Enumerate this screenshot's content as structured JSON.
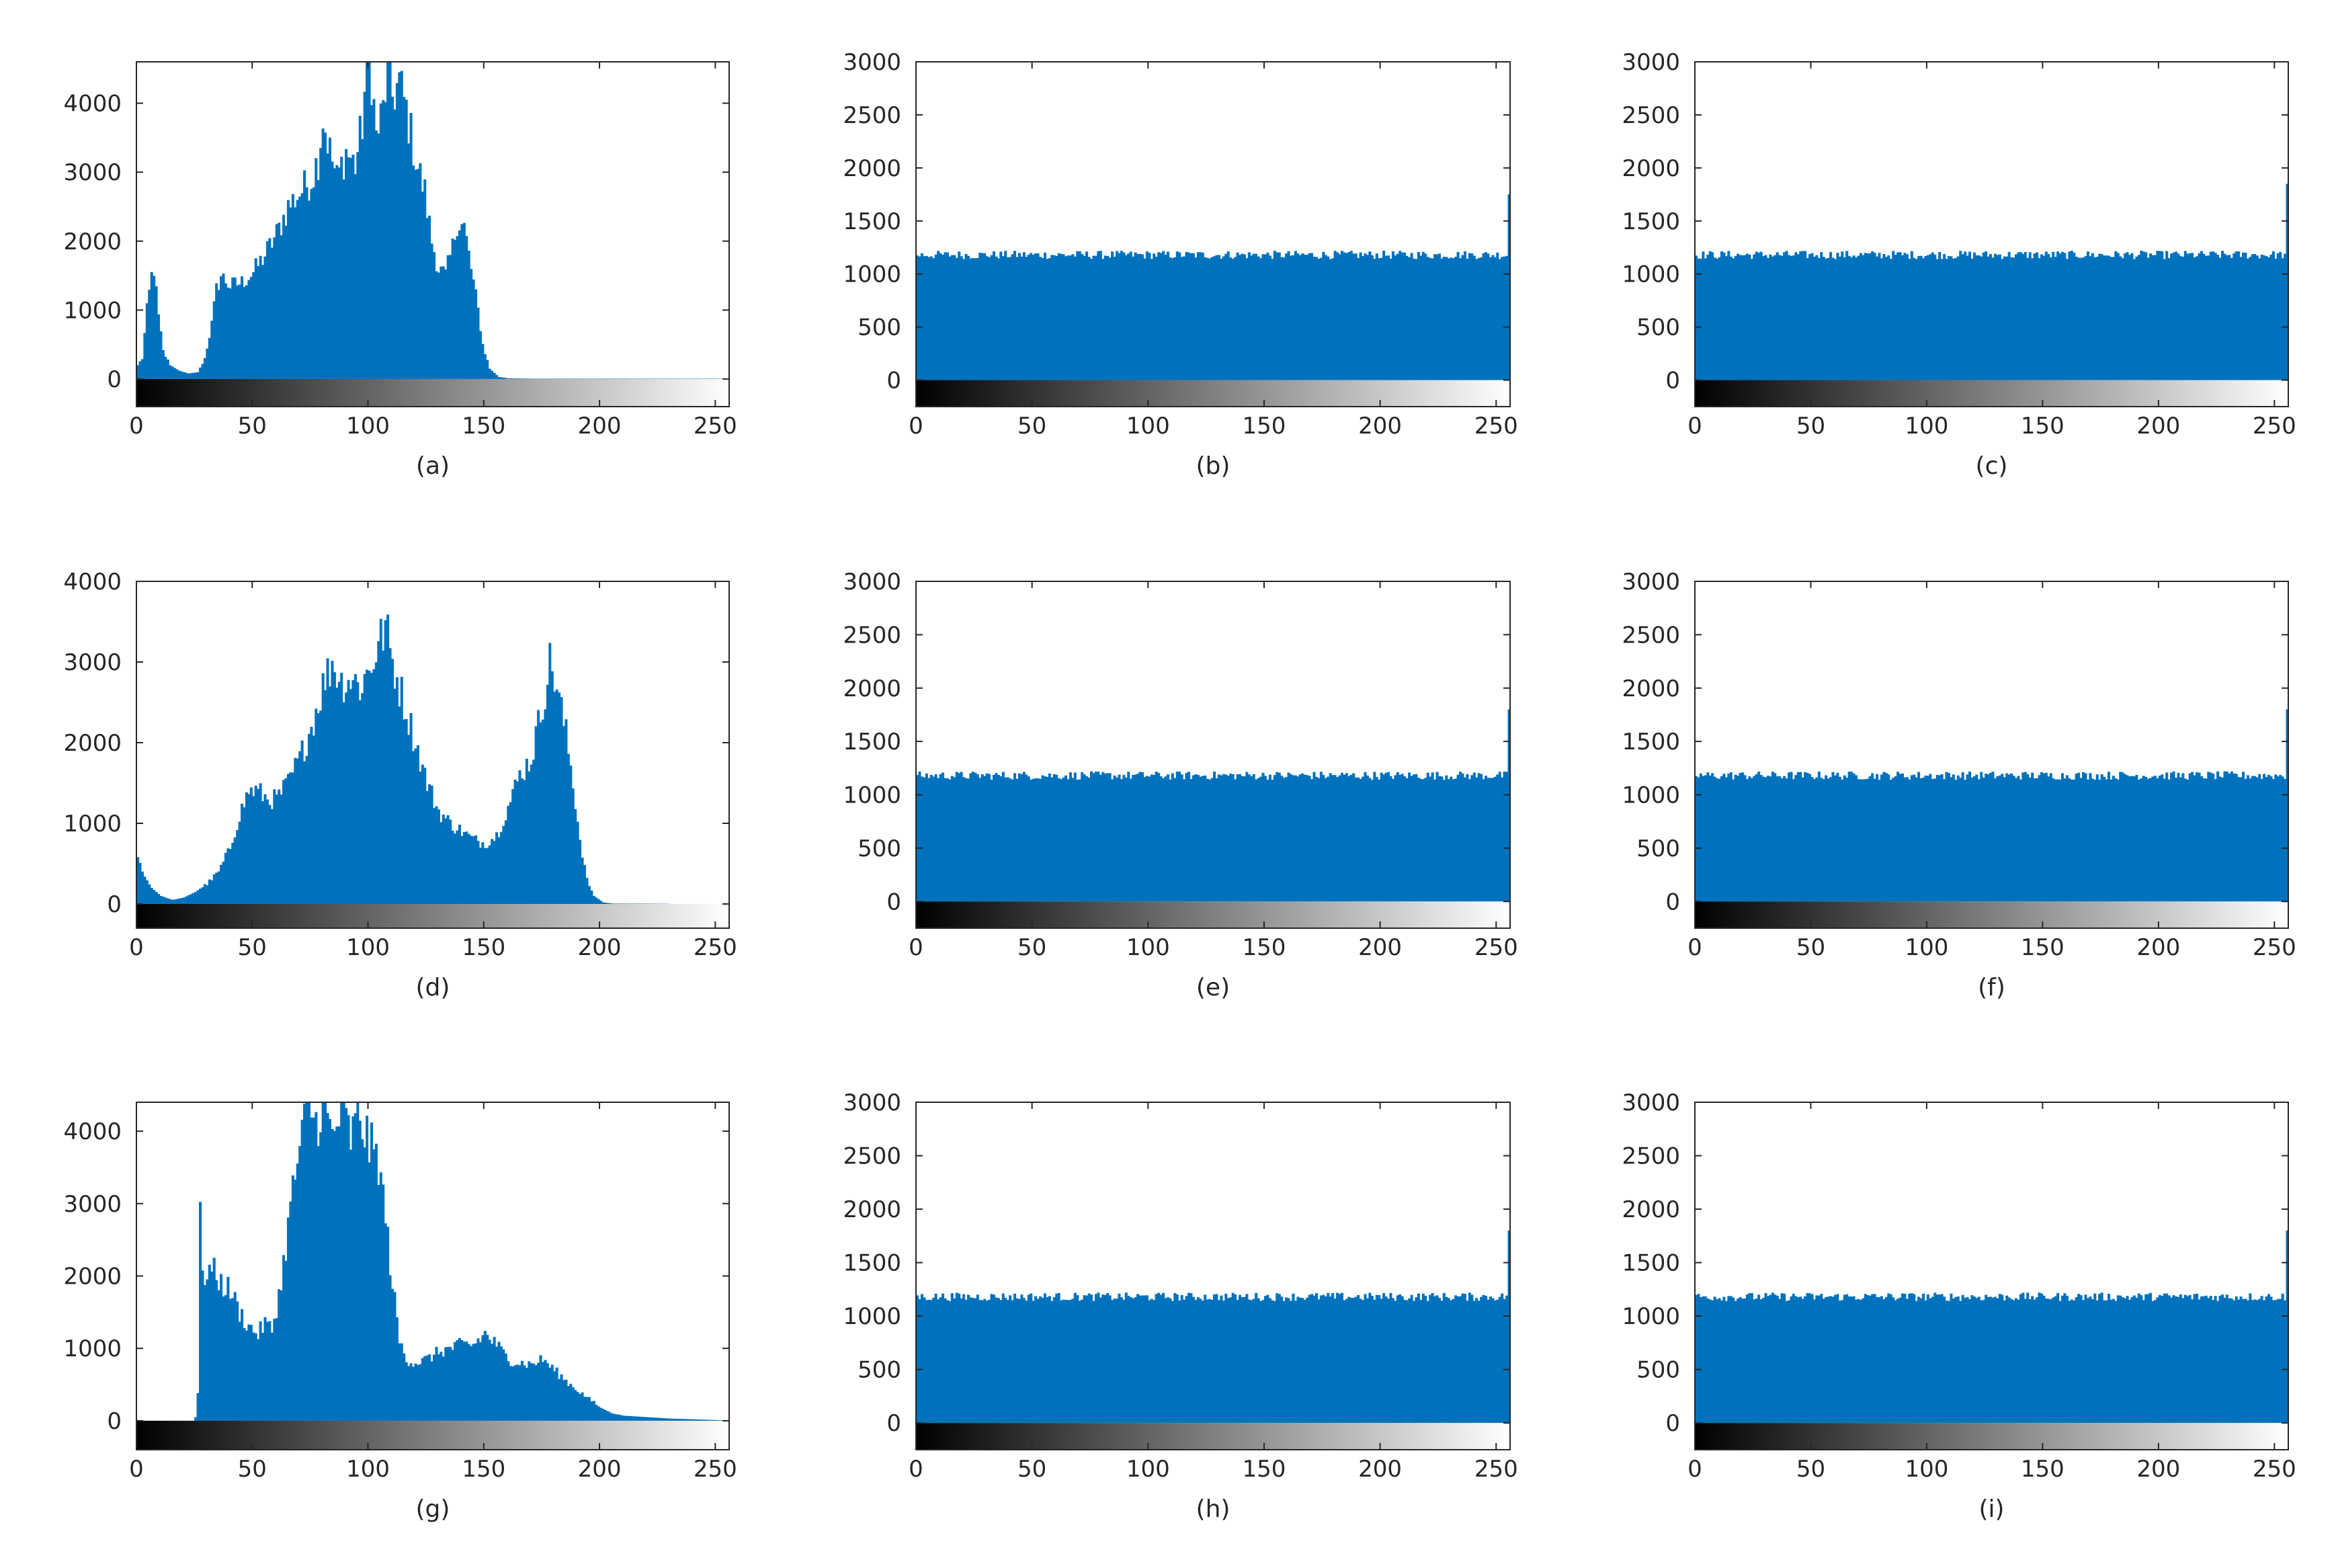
{
  "figure": {
    "bar_color": "#0072BD",
    "axis_color": "#262626"
  },
  "chart_data": [
    {
      "type": "bar",
      "subplot_label": "(a)",
      "xlim": [
        0,
        256
      ],
      "ylim": [
        -400,
        4600
      ],
      "yticks": [
        0,
        1000,
        2000,
        3000,
        4000
      ],
      "xticks": [
        0,
        50,
        100,
        150,
        200,
        250
      ],
      "colorbar": "grayscale 0-255",
      "x_bins": "0..255 (pixel intensity)",
      "profile": [
        [
          0,
          200
        ],
        [
          2,
          300
        ],
        [
          4,
          1000
        ],
        [
          6,
          1500
        ],
        [
          7,
          1600
        ],
        [
          9,
          900
        ],
        [
          11,
          400
        ],
        [
          14,
          200
        ],
        [
          18,
          120
        ],
        [
          22,
          80
        ],
        [
          26,
          100
        ],
        [
          29,
          300
        ],
        [
          32,
          800
        ],
        [
          34,
          1300
        ],
        [
          36,
          1500
        ],
        [
          40,
          1350
        ],
        [
          45,
          1400
        ],
        [
          50,
          1550
        ],
        [
          55,
          1800
        ],
        [
          60,
          2100
        ],
        [
          65,
          2500
        ],
        [
          70,
          2700
        ],
        [
          75,
          2900
        ],
        [
          78,
          3200
        ],
        [
          80,
          3800
        ],
        [
          83,
          3300
        ],
        [
          86,
          2900
        ],
        [
          90,
          3300
        ],
        [
          94,
          3100
        ],
        [
          97,
          3700
        ],
        [
          99,
          4600
        ],
        [
          101,
          4400
        ],
        [
          103,
          3500
        ],
        [
          106,
          3900
        ],
        [
          108,
          4500
        ],
        [
          110,
          4100
        ],
        [
          113,
          4300
        ],
        [
          116,
          3900
        ],
        [
          120,
          3200
        ],
        [
          124,
          2700
        ],
        [
          127,
          2000
        ],
        [
          130,
          1600
        ],
        [
          133,
          1500
        ],
        [
          136,
          1900
        ],
        [
          138,
          2300
        ],
        [
          141,
          2200
        ],
        [
          143,
          1800
        ],
        [
          145,
          1400
        ],
        [
          147,
          1000
        ],
        [
          149,
          500
        ],
        [
          152,
          150
        ],
        [
          156,
          30
        ],
        [
          160,
          10
        ],
        [
          170,
          5
        ],
        [
          250,
          5
        ],
        [
          255,
          0
        ]
      ]
    },
    {
      "type": "bar",
      "subplot_label": "(b)",
      "xlim": [
        0,
        256
      ],
      "ylim": [
        -250,
        3000
      ],
      "yticks": [
        0,
        500,
        1000,
        1500,
        2000,
        2500,
        3000
      ],
      "xticks": [
        0,
        50,
        100,
        150,
        200,
        250
      ],
      "colorbar": "grayscale 0-255",
      "x_bins": "0..255 (pixel intensity)",
      "profile": [
        [
          0,
          1180
        ],
        [
          255,
          1180
        ]
      ],
      "noise": 40,
      "last_bin": 1750
    },
    {
      "type": "bar",
      "subplot_label": "(c)",
      "xlim": [
        0,
        256
      ],
      "ylim": [
        -250,
        3000
      ],
      "yticks": [
        0,
        500,
        1000,
        1500,
        2000,
        2500,
        3000
      ],
      "xticks": [
        0,
        50,
        100,
        150,
        200,
        250
      ],
      "colorbar": "grayscale 0-255",
      "x_bins": "0..255 (pixel intensity)",
      "profile": [
        [
          0,
          1180
        ],
        [
          255,
          1180
        ]
      ],
      "noise": 40,
      "last_bin": 1850
    },
    {
      "type": "bar",
      "subplot_label": "(d)",
      "xlim": [
        0,
        256
      ],
      "ylim": [
        -300,
        4000
      ],
      "yticks": [
        0,
        1000,
        2000,
        3000,
        4000
      ],
      "xticks": [
        0,
        50,
        100,
        150,
        200,
        250
      ],
      "colorbar": "grayscale 0-255",
      "x_bins": "0..255 (pixel intensity)",
      "profile": [
        [
          0,
          550
        ],
        [
          3,
          350
        ],
        [
          6,
          200
        ],
        [
          10,
          100
        ],
        [
          15,
          50
        ],
        [
          20,
          80
        ],
        [
          25,
          150
        ],
        [
          30,
          250
        ],
        [
          35,
          400
        ],
        [
          40,
          700
        ],
        [
          44,
          1100
        ],
        [
          48,
          1400
        ],
        [
          52,
          1400
        ],
        [
          56,
          1300
        ],
        [
          60,
          1300
        ],
        [
          65,
          1500
        ],
        [
          70,
          1800
        ],
        [
          75,
          2200
        ],
        [
          80,
          2700
        ],
        [
          84,
          3000
        ],
        [
          88,
          2750
        ],
        [
          92,
          2800
        ],
        [
          96,
          2700
        ],
        [
          100,
          2900
        ],
        [
          104,
          3200
        ],
        [
          107,
          3450
        ],
        [
          110,
          3000
        ],
        [
          115,
          2500
        ],
        [
          120,
          2000
        ],
        [
          125,
          1500
        ],
        [
          130,
          1150
        ],
        [
          135,
          1000
        ],
        [
          140,
          900
        ],
        [
          145,
          800
        ],
        [
          150,
          750
        ],
        [
          155,
          850
        ],
        [
          160,
          1200
        ],
        [
          165,
          1600
        ],
        [
          170,
          1800
        ],
        [
          175,
          2500
        ],
        [
          178,
          3000
        ],
        [
          181,
          2700
        ],
        [
          185,
          2100
        ],
        [
          188,
          1500
        ],
        [
          191,
          800
        ],
        [
          194,
          300
        ],
        [
          197,
          100
        ],
        [
          201,
          20
        ],
        [
          205,
          5
        ],
        [
          255,
          0
        ]
      ]
    },
    {
      "type": "bar",
      "subplot_label": "(e)",
      "xlim": [
        0,
        256
      ],
      "ylim": [
        -250,
        3000
      ],
      "yticks": [
        0,
        500,
        1000,
        1500,
        2000,
        2500,
        3000
      ],
      "xticks": [
        0,
        50,
        100,
        150,
        200,
        250
      ],
      "colorbar": "grayscale 0-255",
      "x_bins": "0..255 (pixel intensity)",
      "profile": [
        [
          0,
          1180
        ],
        [
          255,
          1180
        ]
      ],
      "noise": 40,
      "last_bin": 1800
    },
    {
      "type": "bar",
      "subplot_label": "(f)",
      "xlim": [
        0,
        256
      ],
      "ylim": [
        -250,
        3000
      ],
      "yticks": [
        0,
        500,
        1000,
        1500,
        2000,
        2500,
        3000
      ],
      "xticks": [
        0,
        50,
        100,
        150,
        200,
        250
      ],
      "colorbar": "grayscale 0-255",
      "x_bins": "0..255 (pixel intensity)",
      "profile": [
        [
          0,
          1180
        ],
        [
          255,
          1180
        ]
      ],
      "noise": 40,
      "last_bin": 1800
    },
    {
      "type": "bar",
      "subplot_label": "(g)",
      "xlim": [
        0,
        256
      ],
      "ylim": [
        -400,
        4400
      ],
      "yticks": [
        0,
        1000,
        2000,
        3000,
        4000
      ],
      "xticks": [
        0,
        50,
        100,
        150,
        200,
        250
      ],
      "colorbar": "grayscale 0-255",
      "x_bins": "0..255 (pixel intensity)",
      "profile": [
        [
          0,
          0
        ],
        [
          24,
          0
        ],
        [
          25,
          50
        ],
        [
          26,
          400
        ],
        [
          27,
          2950
        ],
        [
          28,
          1900
        ],
        [
          30,
          2100
        ],
        [
          33,
          2050
        ],
        [
          36,
          1900
        ],
        [
          40,
          1800
        ],
        [
          44,
          1500
        ],
        [
          48,
          1300
        ],
        [
          52,
          1200
        ],
        [
          55,
          1350
        ],
        [
          58,
          1250
        ],
        [
          62,
          1900
        ],
        [
          65,
          2700
        ],
        [
          68,
          3400
        ],
        [
          71,
          3900
        ],
        [
          74,
          4400
        ],
        [
          77,
          4100
        ],
        [
          80,
          4400
        ],
        [
          84,
          3900
        ],
        [
          88,
          4300
        ],
        [
          92,
          3900
        ],
        [
          96,
          4200
        ],
        [
          100,
          3800
        ],
        [
          104,
          3600
        ],
        [
          107,
          2800
        ],
        [
          110,
          1900
        ],
        [
          113,
          1100
        ],
        [
          116,
          850
        ],
        [
          120,
          800
        ],
        [
          125,
          850
        ],
        [
          130,
          950
        ],
        [
          135,
          1000
        ],
        [
          140,
          1050
        ],
        [
          145,
          1050
        ],
        [
          150,
          1200
        ],
        [
          155,
          1050
        ],
        [
          160,
          850
        ],
        [
          165,
          800
        ],
        [
          170,
          780
        ],
        [
          175,
          850
        ],
        [
          180,
          700
        ],
        [
          185,
          550
        ],
        [
          190,
          420
        ],
        [
          195,
          300
        ],
        [
          200,
          180
        ],
        [
          205,
          100
        ],
        [
          210,
          70
        ],
        [
          220,
          50
        ],
        [
          230,
          30
        ],
        [
          240,
          20
        ],
        [
          250,
          10
        ],
        [
          255,
          5
        ]
      ]
    },
    {
      "type": "bar",
      "subplot_label": "(h)",
      "xlim": [
        0,
        256
      ],
      "ylim": [
        -250,
        3000
      ],
      "yticks": [
        0,
        500,
        1000,
        1500,
        2000,
        2500,
        3000
      ],
      "xticks": [
        0,
        50,
        100,
        150,
        200,
        250
      ],
      "colorbar": "grayscale 0-255",
      "x_bins": "0..255 (pixel intensity)",
      "profile": [
        [
          0,
          1180
        ],
        [
          255,
          1180
        ]
      ],
      "noise": 40,
      "last_bin": 1800
    },
    {
      "type": "bar",
      "subplot_label": "(i)",
      "xlim": [
        0,
        256
      ],
      "ylim": [
        -250,
        3000
      ],
      "yticks": [
        0,
        500,
        1000,
        1500,
        2000,
        2500,
        3000
      ],
      "xticks": [
        0,
        50,
        100,
        150,
        200,
        250
      ],
      "colorbar": "grayscale 0-255",
      "x_bins": "0..255 (pixel intensity)",
      "profile": [
        [
          0,
          1180
        ],
        [
          255,
          1180
        ]
      ],
      "noise": 40,
      "last_bin": 1800
    }
  ]
}
